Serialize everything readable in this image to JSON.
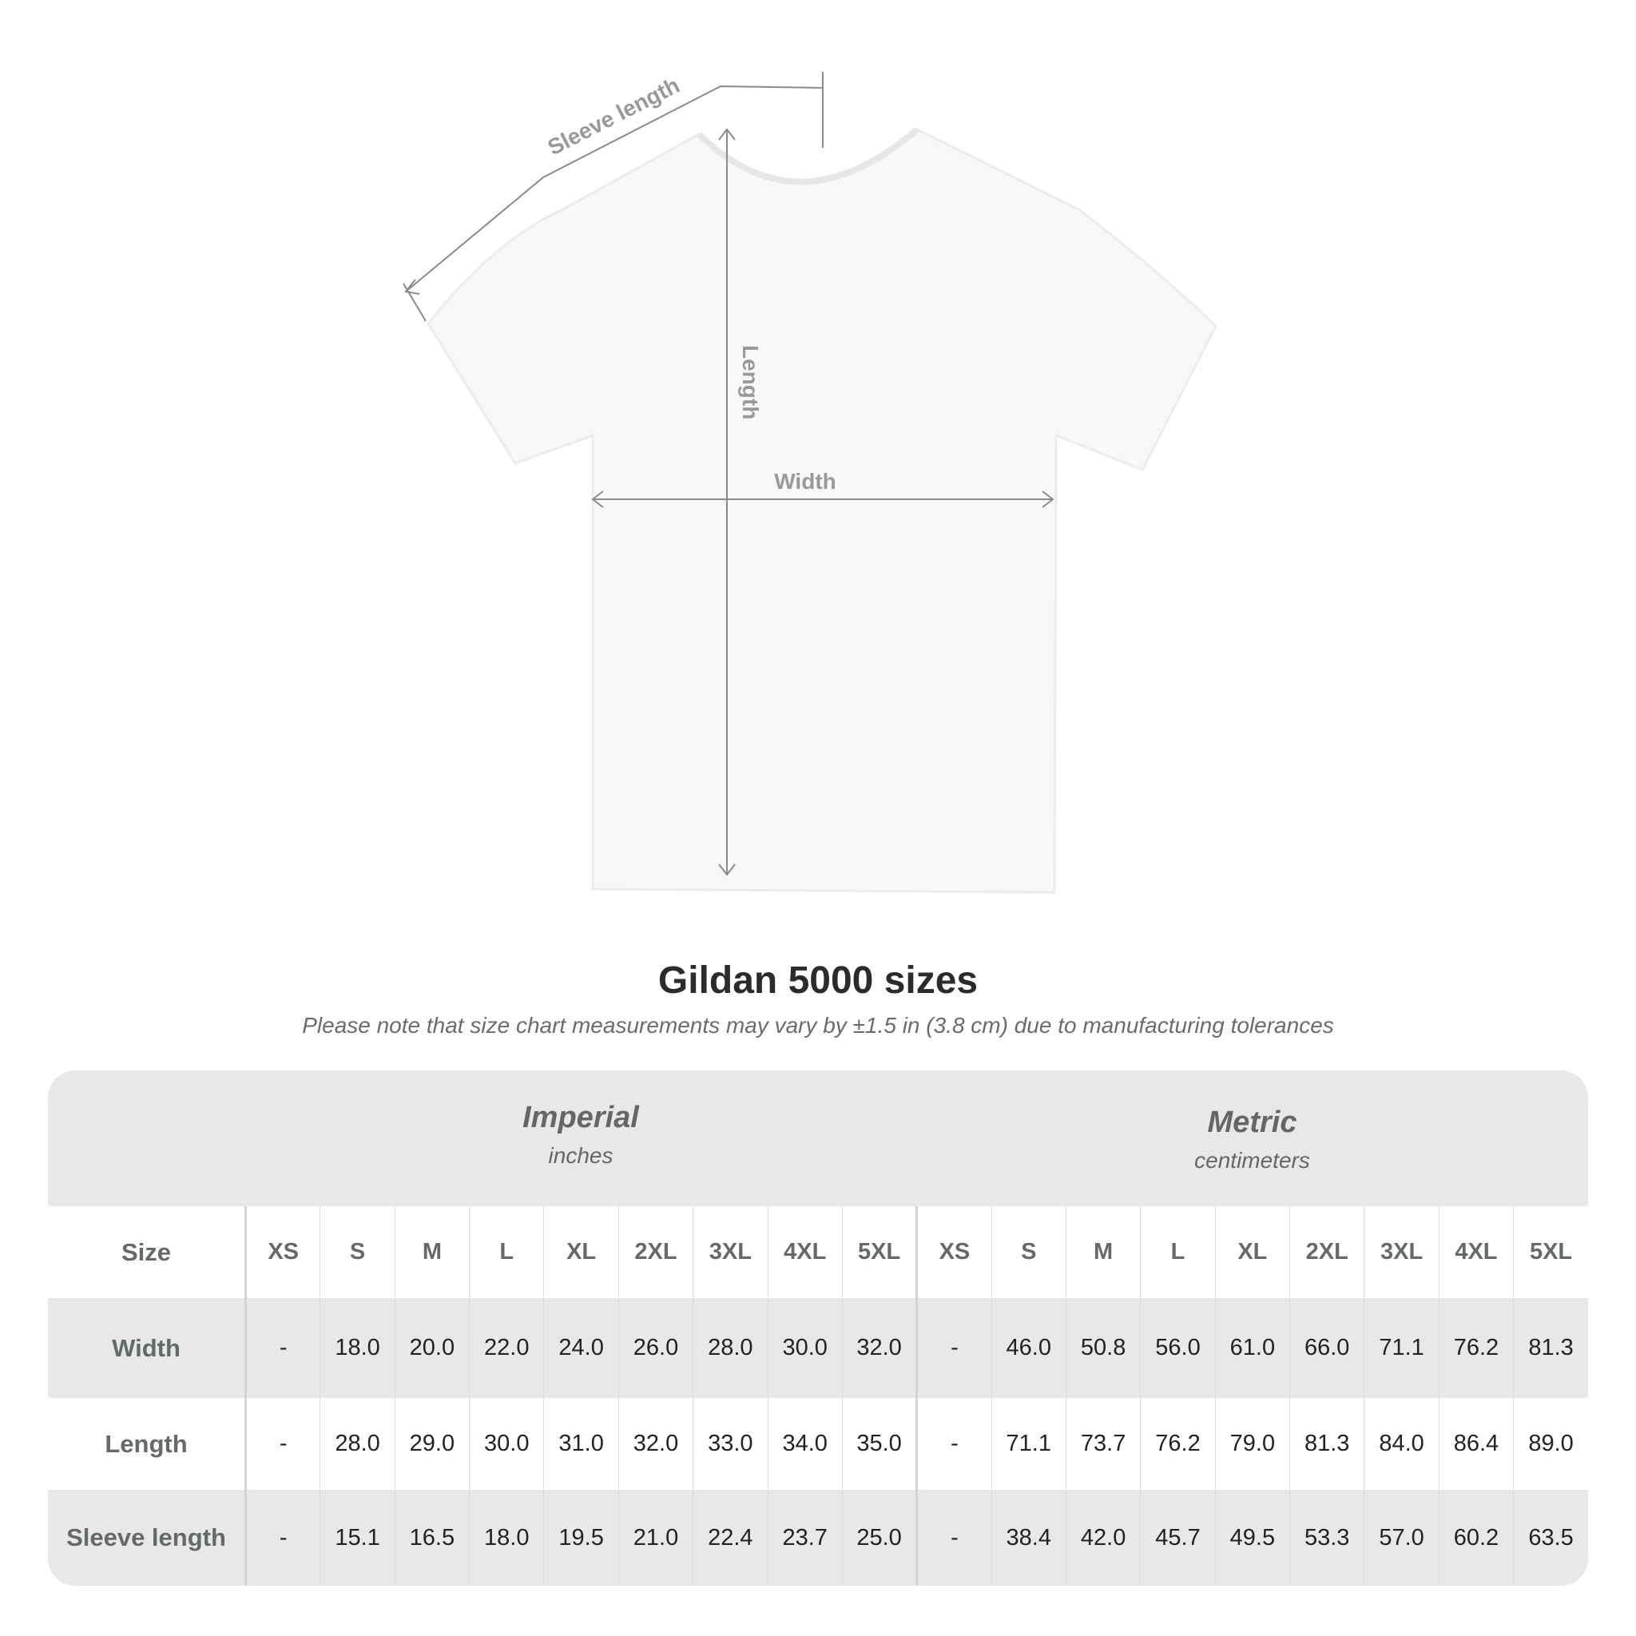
{
  "diagram": {
    "sleeve_label": "Sleeve length",
    "length_label": "Length",
    "width_label": "Width"
  },
  "title": "Gildan 5000 sizes",
  "note": "Please note that size chart measurements may vary by ±1.5 in (3.8 cm) due to manufacturing tolerances",
  "imperial": {
    "heading": "Imperial",
    "unit": "inches"
  },
  "metric": {
    "heading": "Metric",
    "unit": "centimeters"
  },
  "size_label": "Size",
  "sizes": [
    "XS",
    "S",
    "M",
    "L",
    "XL",
    "2XL",
    "3XL",
    "4XL",
    "5XL"
  ],
  "rows": [
    {
      "label": "Width",
      "imperial": [
        "-",
        "18.0",
        "20.0",
        "22.0",
        "24.0",
        "26.0",
        "28.0",
        "30.0",
        "32.0"
      ],
      "metric": [
        "-",
        "46.0",
        "50.8",
        "56.0",
        "61.0",
        "66.0",
        "71.1",
        "76.2",
        "81.3"
      ]
    },
    {
      "label": "Length",
      "imperial": [
        "-",
        "28.0",
        "29.0",
        "30.0",
        "31.0",
        "32.0",
        "33.0",
        "34.0",
        "35.0"
      ],
      "metric": [
        "-",
        "71.1",
        "73.7",
        "76.2",
        "79.0",
        "81.3",
        "84.0",
        "86.4",
        "89.0"
      ]
    },
    {
      "label": "Sleeve length",
      "imperial": [
        "-",
        "15.1",
        "16.5",
        "18.0",
        "19.5",
        "21.0",
        "22.4",
        "23.7",
        "25.0"
      ],
      "metric": [
        "-",
        "38.4",
        "42.0",
        "45.7",
        "49.5",
        "53.3",
        "57.0",
        "60.2",
        "63.5"
      ]
    }
  ],
  "colors": {
    "header_bg": "#e8e8e8",
    "label_text": "#646a6a",
    "value_text": "#222222"
  }
}
